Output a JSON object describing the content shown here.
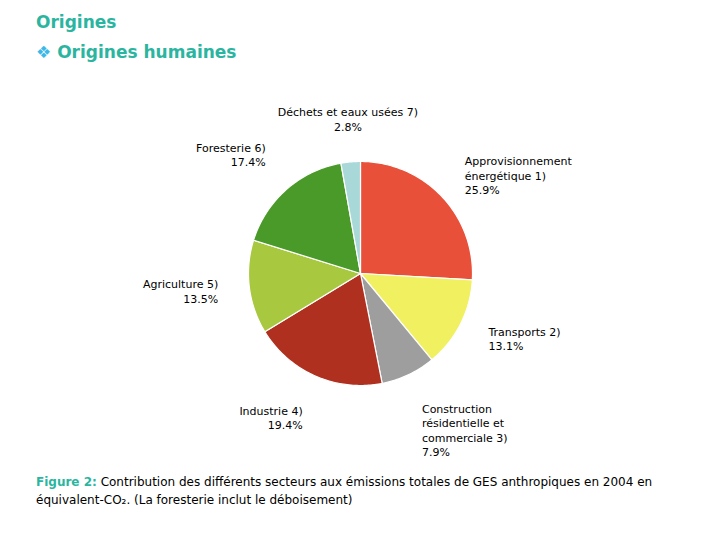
{
  "chart_data": {
    "type": "pie",
    "title": "Origines",
    "subtitle": "❖ Origines humaines",
    "categories": [
      "Approvisionnement\nénergétique 1)",
      "Transports 2)",
      "Construction\nrésidentielle et\ncommerciale 3)",
      "Industrie 4)",
      "Agriculture 5)",
      "Foresterie 6)",
      "Déchets et eaux usées 7)"
    ],
    "values": [
      25.9,
      13.1,
      7.9,
      19.4,
      13.5,
      17.4,
      2.8
    ],
    "value_labels": [
      "25.9%",
      "13.1%",
      "7.9%",
      "19.4%",
      "13.5%",
      "17.4%",
      "2.8%"
    ],
    "colors": [
      "#E8503A",
      "#F0F060",
      "#9E9E9E",
      "#B03020",
      "#A8C840",
      "#4A9A2A",
      "#A8D8D8"
    ],
    "caption": "Figure 2: Contribution des différents secteurs aux émissions totales de GES anthropiques en 2004 en équivalent-CO₂. (La foresterie inclut le déboisement)"
  }
}
